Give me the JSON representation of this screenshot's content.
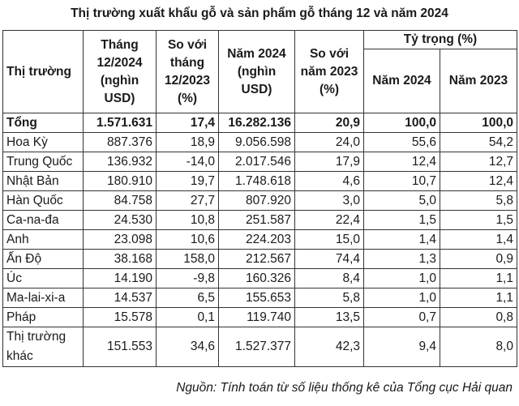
{
  "title": "Thị trường xuất khẩu gỗ và sản phẩm gỗ tháng 12 và năm 2024",
  "headers": {
    "market": "Thị trường",
    "month_value": [
      "Tháng",
      "12/2024",
      "(nghìn",
      "USD)"
    ],
    "vs_month": [
      "So với",
      "tháng",
      "12/2023",
      "(%)"
    ],
    "year_value": [
      "Năm 2024",
      "(nghìn",
      "USD)"
    ],
    "vs_year": [
      "So với",
      "năm 2023",
      "(%)"
    ],
    "share": "Tỷ trọng (%)",
    "share_2024": "Năm 2024",
    "share_2023": "Năm 2023"
  },
  "rows": [
    {
      "market": "Tổng",
      "month": "1.571.631",
      "vs_month": "17,4",
      "year": "16.282.136",
      "vs_year": "20,9",
      "share_2024": "100,0",
      "share_2023": "100,0"
    },
    {
      "market": "Hoa Kỳ",
      "month": "887.376",
      "vs_month": "18,9",
      "year": "9.056.598",
      "vs_year": "24,0",
      "share_2024": "55,6",
      "share_2023": "54,2"
    },
    {
      "market": "Trung Quốc",
      "month": "136.932",
      "vs_month": "-14,0",
      "year": "2.017.546",
      "vs_year": "17,9",
      "share_2024": "12,4",
      "share_2023": "12,7"
    },
    {
      "market": "Nhật Bản",
      "month": "180.910",
      "vs_month": "19,7",
      "year": "1.748.618",
      "vs_year": "4,6",
      "share_2024": "10,7",
      "share_2023": "12,4"
    },
    {
      "market": "Hàn Quốc",
      "month": "84.758",
      "vs_month": "27,7",
      "year": "807.920",
      "vs_year": "3,0",
      "share_2024": "5,0",
      "share_2023": "5,8"
    },
    {
      "market": "Ca-na-đa",
      "month": "24.530",
      "vs_month": "10,8",
      "year": "251.587",
      "vs_year": "22,4",
      "share_2024": "1,5",
      "share_2023": "1,5"
    },
    {
      "market": "Anh",
      "month": "23.098",
      "vs_month": "10,6",
      "year": "224.203",
      "vs_year": "15,0",
      "share_2024": "1,4",
      "share_2023": "1,4"
    },
    {
      "market": "Ấn Độ",
      "month": "38.168",
      "vs_month": "158,0",
      "year": "212.567",
      "vs_year": "74,4",
      "share_2024": "1,3",
      "share_2023": "0,9"
    },
    {
      "market": "Úc",
      "month": "14.190",
      "vs_month": "-9,8",
      "year": "160.326",
      "vs_year": "8,4",
      "share_2024": "1,0",
      "share_2023": "1,1"
    },
    {
      "market": "Ma-lai-xi-a",
      "month": "14.537",
      "vs_month": "6,5",
      "year": "155.653",
      "vs_year": "5,8",
      "share_2024": "1,0",
      "share_2023": "1,1"
    },
    {
      "market": "Pháp",
      "month": "15.578",
      "vs_month": "0,1",
      "year": "119.740",
      "vs_year": "13,5",
      "share_2024": "0,7",
      "share_2023": "0,8"
    },
    {
      "market": "Thị trường khác",
      "month": "151.553",
      "vs_month": "34,6",
      "year": "1.527.377",
      "vs_year": "42,3",
      "share_2024": "9,4",
      "share_2023": "8,0"
    }
  ],
  "source": "Nguồn: Tính toán từ số liệu thống kê của Tổng cục Hải quan"
}
